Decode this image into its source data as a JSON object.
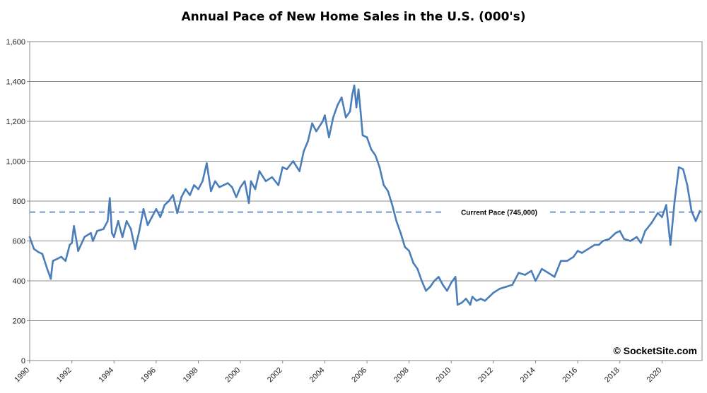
{
  "chart_data": {
    "type": "line",
    "title": "Annual Pace of New Home Sales in the U.S. (000's)",
    "xlabel": "",
    "ylabel": "",
    "xlim": [
      1990,
      2021.9
    ],
    "ylim": [
      0,
      1600
    ],
    "y_ticks": [
      0,
      200,
      400,
      600,
      800,
      1000,
      1200,
      1400,
      1600
    ],
    "y_tick_labels": [
      "0",
      "200",
      "400",
      "600",
      "800",
      "1,000",
      "1,200",
      "1,400",
      "1,600"
    ],
    "x_ticks": [
      1990,
      1992,
      1994,
      1996,
      1998,
      2000,
      2002,
      2004,
      2006,
      2008,
      2010,
      2012,
      2014,
      2016,
      2018,
      2020
    ],
    "x_tick_labels": [
      "1990",
      "1992",
      "1994",
      "1996",
      "1998",
      "2000",
      "2002",
      "2004",
      "2006",
      "2008",
      "2010",
      "2012",
      "2014",
      "2016",
      "2018",
      "2020"
    ],
    "grid": "horizontal",
    "series": [
      {
        "color": "#4a7ebb",
        "x": [
          1990.0,
          1990.2,
          1990.4,
          1990.6,
          1990.8,
          1991.0,
          1991.1,
          1991.3,
          1991.5,
          1991.7,
          1991.9,
          1992.0,
          1992.1,
          1992.3,
          1992.6,
          1992.9,
          1993.0,
          1993.2,
          1993.5,
          1993.7,
          1993.8,
          1993.9,
          1994.0,
          1994.2,
          1994.4,
          1994.6,
          1994.8,
          1995.0,
          1995.2,
          1995.4,
          1995.6,
          1995.8,
          1996.0,
          1996.2,
          1996.4,
          1996.6,
          1996.8,
          1997.0,
          1997.2,
          1997.4,
          1997.6,
          1997.8,
          1998.0,
          1998.2,
          1998.4,
          1998.6,
          1998.8,
          1999.0,
          1999.2,
          1999.4,
          1999.6,
          1999.8,
          2000.0,
          2000.2,
          2000.4,
          2000.5,
          2000.7,
          2000.9,
          2001.2,
          2001.5,
          2001.8,
          2002.0,
          2002.2,
          2002.5,
          2002.8,
          2003.0,
          2003.2,
          2003.4,
          2003.6,
          2003.9,
          2004.0,
          2004.2,
          2004.4,
          2004.6,
          2004.8,
          2005.0,
          2005.2,
          2005.3,
          2005.4,
          2005.5,
          2005.6,
          2005.7,
          2005.8,
          2006.0,
          2006.2,
          2006.4,
          2006.6,
          2006.8,
          2007.0,
          2007.2,
          2007.4,
          2007.6,
          2007.8,
          2008.0,
          2008.2,
          2008.4,
          2008.6,
          2008.8,
          2009.0,
          2009.2,
          2009.4,
          2009.6,
          2009.8,
          2010.0,
          2010.2,
          2010.3,
          2010.5,
          2010.7,
          2010.9,
          2011.0,
          2011.2,
          2011.4,
          2011.6,
          2011.8,
          2012.0,
          2012.3,
          2012.6,
          2012.9,
          2013.2,
          2013.5,
          2013.8,
          2014.0,
          2014.3,
          2014.6,
          2014.9,
          2015.2,
          2015.5,
          2015.8,
          2016.0,
          2016.2,
          2016.5,
          2016.8,
          2017.0,
          2017.2,
          2017.5,
          2017.8,
          2018.0,
          2018.2,
          2018.5,
          2018.8,
          2019.0,
          2019.2,
          2019.5,
          2019.8,
          2020.0,
          2020.2,
          2020.4,
          2020.6,
          2020.8,
          2021.0,
          2021.2,
          2021.4,
          2021.6,
          2021.8
        ],
        "values": [
          620,
          560,
          545,
          535,
          470,
          410,
          500,
          510,
          520,
          500,
          580,
          590,
          675,
          550,
          620,
          640,
          600,
          650,
          660,
          700,
          815,
          640,
          620,
          700,
          620,
          700,
          660,
          560,
          650,
          760,
          680,
          720,
          760,
          720,
          780,
          800,
          830,
          740,
          820,
          860,
          830,
          880,
          860,
          900,
          990,
          850,
          900,
          870,
          880,
          890,
          870,
          820,
          870,
          900,
          790,
          900,
          860,
          950,
          900,
          920,
          880,
          970,
          960,
          1000,
          950,
          1050,
          1100,
          1190,
          1150,
          1200,
          1230,
          1120,
          1220,
          1280,
          1320,
          1220,
          1250,
          1330,
          1380,
          1270,
          1360,
          1250,
          1130,
          1120,
          1060,
          1030,
          970,
          880,
          850,
          780,
          700,
          640,
          570,
          550,
          490,
          460,
          400,
          350,
          370,
          400,
          420,
          380,
          350,
          390,
          420,
          280,
          290,
          310,
          280,
          320,
          300,
          310,
          300,
          320,
          340,
          360,
          370,
          380,
          440,
          430,
          450,
          400,
          460,
          440,
          420,
          500,
          500,
          520,
          550,
          540,
          560,
          580,
          580,
          600,
          610,
          640,
          650,
          610,
          600,
          620,
          590,
          650,
          690,
          740,
          720,
          780,
          580,
          800,
          970,
          960,
          880,
          750,
          700,
          750
        ]
      }
    ],
    "annotations": [
      {
        "text": "Current Pace (745,000)",
        "y": 745,
        "style": "dashed-line"
      }
    ],
    "watermark": "© SocketSite.com"
  }
}
